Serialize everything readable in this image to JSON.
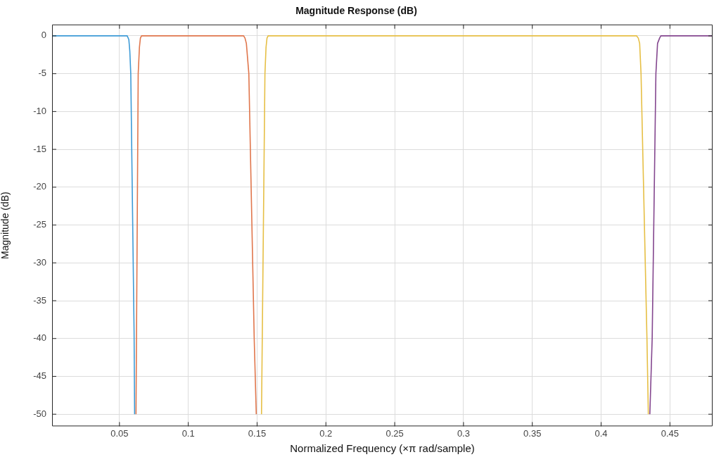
{
  "chart_data": {
    "type": "line",
    "title": "Magnitude Response (dB)",
    "xlabel": "Normalized Frequency (×π rad/sample)",
    "ylabel": "Magnitude (dB)",
    "xlim": [
      0.001,
      0.481
    ],
    "ylim": [
      -51.6,
      1.5
    ],
    "xticks": [
      0.05,
      0.1,
      0.15,
      0.2,
      0.25,
      0.3,
      0.35,
      0.4,
      0.45
    ],
    "yticks": [
      0,
      -5,
      -10,
      -15,
      -20,
      -25,
      -30,
      -35,
      -40,
      -45,
      -50
    ],
    "grid": true,
    "legend": false,
    "marker": "none",
    "line_style": "solid",
    "series": [
      {
        "color": "#3d9ad6",
        "x": [
          0.001,
          0.0556,
          0.0568,
          0.0575,
          0.0582,
          0.0606,
          0.061
        ],
        "values": [
          0,
          0,
          -0.5,
          -2,
          -5,
          -39,
          -50
        ]
      },
      {
        "color": "#e0764c",
        "x": [
          0.062,
          0.0636,
          0.0645,
          0.0652,
          0.066,
          0.1402,
          0.1412,
          0.1422,
          0.144,
          0.1479,
          0.1494
        ],
        "values": [
          -50,
          -5,
          -1.5,
          -0.3,
          0,
          0,
          -0.3,
          -1,
          -5,
          -40,
          -50
        ]
      },
      {
        "color": "#e6bf45",
        "x": [
          0.1532,
          0.1557,
          0.1565,
          0.1572,
          0.158,
          0.4258,
          0.427,
          0.428,
          0.429,
          0.4333,
          0.4343
        ],
        "values": [
          -50,
          -5,
          -1.5,
          -0.3,
          0,
          0,
          -0.3,
          -1,
          -5,
          -40,
          -50
        ]
      },
      {
        "color": "#84478f",
        "x": [
          0.4354,
          0.4371,
          0.4398,
          0.441,
          0.4425,
          0.4434,
          0.481
        ],
        "values": [
          -50,
          -40,
          -5,
          -1,
          -0.3,
          0,
          0
        ]
      }
    ]
  }
}
